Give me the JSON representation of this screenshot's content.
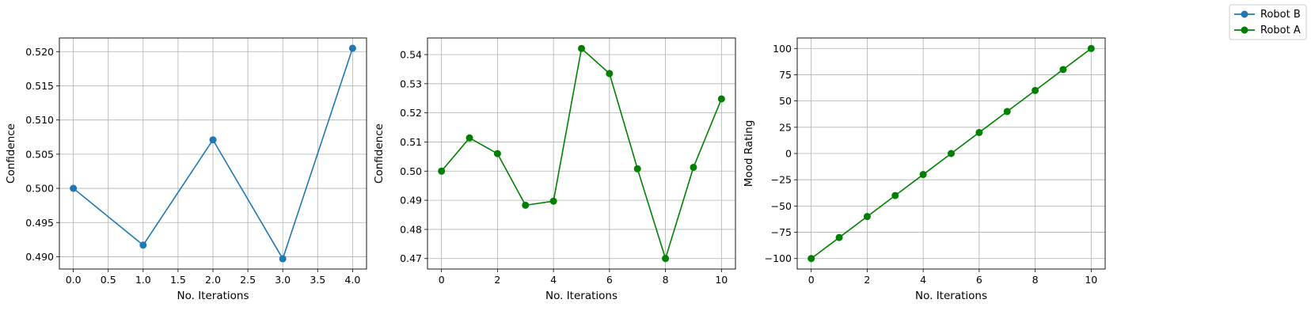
{
  "legend": {
    "items": [
      {
        "name": "Robot B",
        "color": "#1f77b4"
      },
      {
        "name": "Robot A",
        "color": "#008000"
      }
    ]
  },
  "chart_data": [
    {
      "type": "line",
      "xlabel": "No. Iterations",
      "ylabel": "Confidence",
      "color": "#1f77b4",
      "marker": "circle",
      "grid": true,
      "x": [
        0,
        1,
        2,
        3,
        4
      ],
      "y": [
        0.5,
        0.4917,
        0.5071,
        0.4897,
        0.5205
      ],
      "xlim": [
        -0.2,
        4.2
      ],
      "ylim": [
        0.4882,
        0.522
      ],
      "xticks": [
        0.0,
        0.5,
        1.0,
        1.5,
        2.0,
        2.5,
        3.0,
        3.5,
        4.0
      ],
      "xtick_labels": [
        "0.0",
        "0.5",
        "1.0",
        "1.5",
        "2.0",
        "2.5",
        "3.0",
        "3.5",
        "4.0"
      ],
      "yticks": [
        0.49,
        0.495,
        0.5,
        0.505,
        0.51,
        0.515,
        0.52
      ],
      "ytick_labels": [
        "0.490",
        "0.495",
        "0.500",
        "0.505",
        "0.510",
        "0.515",
        "0.520"
      ]
    },
    {
      "type": "line",
      "xlabel": "No. Iterations",
      "ylabel": "Confidence",
      "color": "#008000",
      "marker": "circle",
      "grid": true,
      "x": [
        0,
        1,
        2,
        3,
        4,
        5,
        6,
        7,
        8,
        9,
        10
      ],
      "y": [
        0.5,
        0.5114,
        0.506,
        0.4883,
        0.4897,
        0.5421,
        0.5335,
        0.5008,
        0.47,
        0.5013,
        0.5248
      ],
      "xlim": [
        -0.5,
        10.5
      ],
      "ylim": [
        0.4664,
        0.5457
      ],
      "xticks": [
        0,
        2,
        4,
        6,
        8,
        10
      ],
      "xtick_labels": [
        "0",
        "2",
        "4",
        "6",
        "8",
        "10"
      ],
      "yticks": [
        0.47,
        0.48,
        0.49,
        0.5,
        0.51,
        0.52,
        0.53,
        0.54
      ],
      "ytick_labels": [
        "0.47",
        "0.48",
        "0.49",
        "0.50",
        "0.51",
        "0.52",
        "0.53",
        "0.54"
      ]
    },
    {
      "type": "line",
      "xlabel": "No. Iterations",
      "ylabel": "Mood Rating",
      "color": "#008000",
      "marker": "circle",
      "grid": true,
      "x": [
        0,
        1,
        2,
        3,
        4,
        5,
        6,
        7,
        8,
        9,
        10
      ],
      "y": [
        -100,
        -80,
        -60,
        -40,
        -20,
        0,
        20,
        40,
        60,
        80,
        100
      ],
      "xlim": [
        -0.5,
        10.5
      ],
      "ylim": [
        -110,
        110
      ],
      "xticks": [
        0,
        2,
        4,
        6,
        8,
        10
      ],
      "xtick_labels": [
        "0",
        "2",
        "4",
        "6",
        "8",
        "10"
      ],
      "yticks": [
        -100,
        -75,
        -50,
        -25,
        0,
        25,
        50,
        75,
        100
      ],
      "ytick_labels": [
        "−100",
        "−75",
        "−50",
        "−25",
        "0",
        "25",
        "50",
        "75",
        "100"
      ]
    }
  ]
}
